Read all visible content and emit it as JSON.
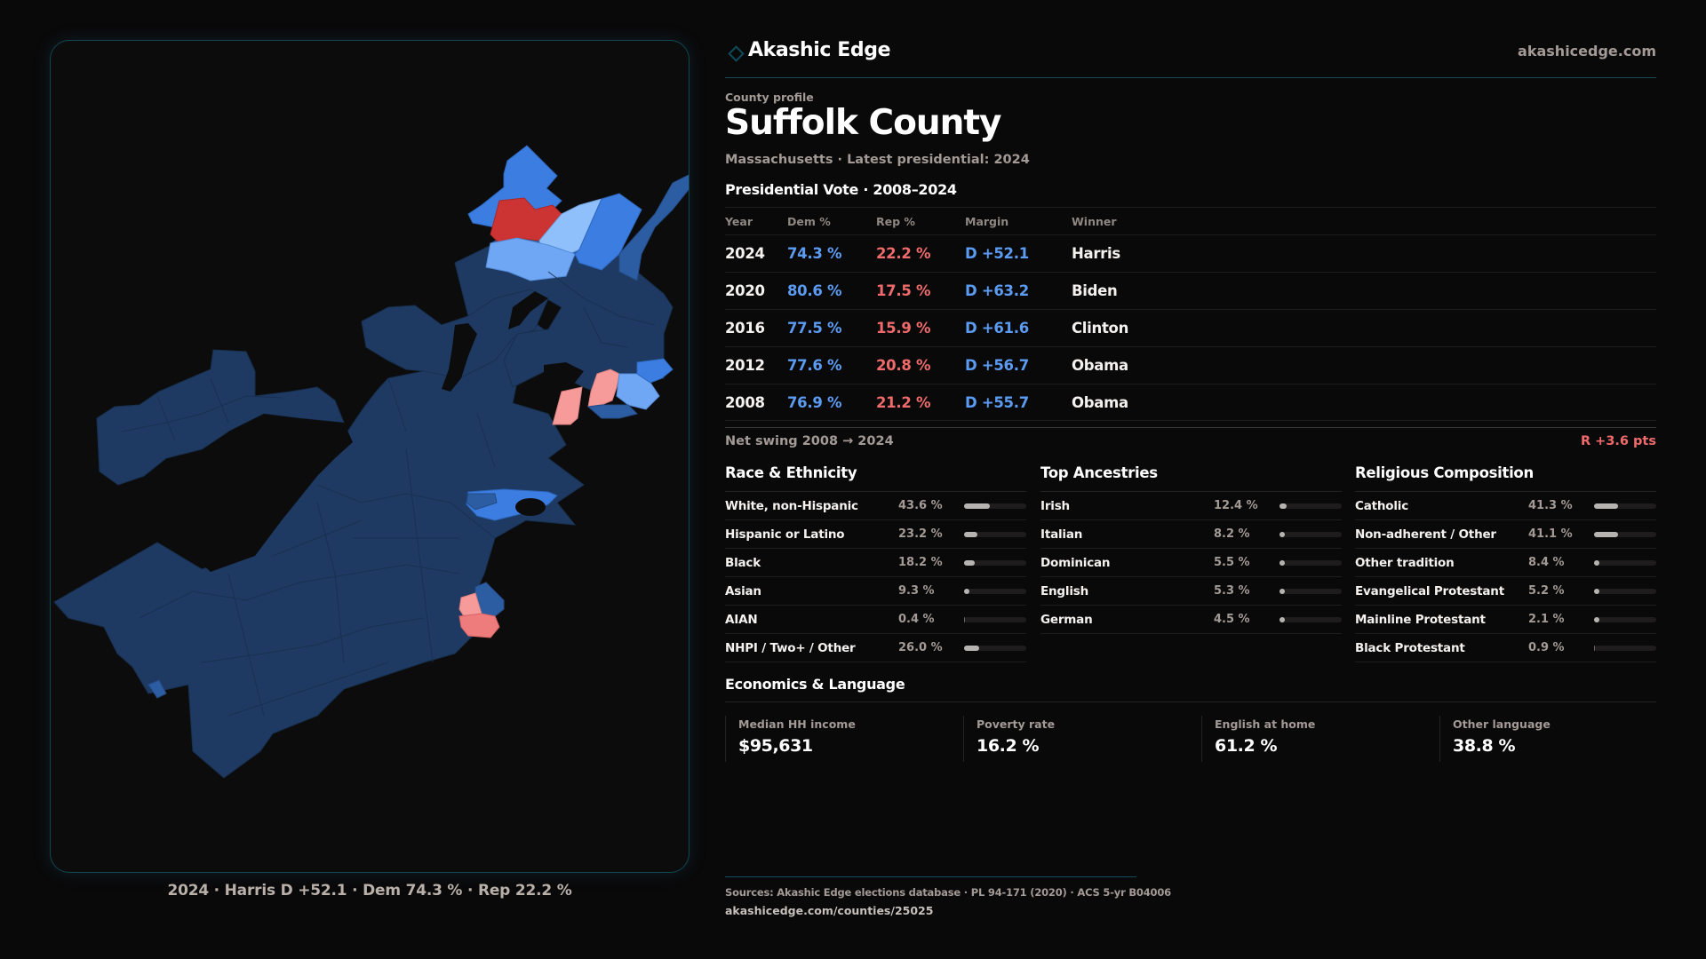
{
  "brand": {
    "name": "Akashic Edge",
    "url": "akashicedge.com",
    "icon": "diamond-outline-icon",
    "accent": "#0e4a5a"
  },
  "profile": {
    "eyebrow": "County profile",
    "title": "Suffolk County",
    "subtitle": "Massachusetts · Latest presidential: 2024"
  },
  "map": {
    "caption": "2024 · Harris D +52.1 · Dem 74.3 % · Rep 22.2 %",
    "colors": {
      "safe_dem": "#1e3a62",
      "likely_dem": "#2c5da3",
      "lean_dem": "#3b7de0",
      "tilt_dem": "#6fa7f5",
      "light_dem": "#8fc0fb",
      "lean_rep": "#f69a9a",
      "likely_rep": "#ef7c7c",
      "safe_rep": "#cc3434"
    }
  },
  "presidential": {
    "title": "Presidential Vote · 2008–2024",
    "columns": [
      "Year",
      "Dem %",
      "Rep %",
      "Margin",
      "Winner"
    ],
    "rows": [
      {
        "year": "2024",
        "dem": "74.3 %",
        "rep": "22.2 %",
        "margin": "D +52.1",
        "winner": "Harris"
      },
      {
        "year": "2020",
        "dem": "80.6 %",
        "rep": "17.5 %",
        "margin": "D +63.2",
        "winner": "Biden"
      },
      {
        "year": "2016",
        "dem": "77.5 %",
        "rep": "15.9 %",
        "margin": "D +61.6",
        "winner": "Clinton"
      },
      {
        "year": "2012",
        "dem": "77.6 %",
        "rep": "20.8 %",
        "margin": "D +56.7",
        "winner": "Obama"
      },
      {
        "year": "2008",
        "dem": "76.9 %",
        "rep": "21.2 %",
        "margin": "D +55.7",
        "winner": "Obama"
      }
    ],
    "colors": {
      "dem": "#5b9cf2",
      "rep": "#ef6b6b"
    }
  },
  "swing": {
    "label": "Net swing 2008 → 2024",
    "value": "R +3.6 pts"
  },
  "demographics": [
    {
      "title": "Race & Ethnicity",
      "items": [
        {
          "label": "White, non-Hispanic",
          "value": "43.6 %",
          "pct": 43.6
        },
        {
          "label": "Hispanic or Latino",
          "value": "23.2 %",
          "pct": 23.2
        },
        {
          "label": "Black",
          "value": "18.2 %",
          "pct": 18.2
        },
        {
          "label": "Asian",
          "value": "9.3 %",
          "pct": 9.3
        },
        {
          "label": "AIAN",
          "value": "0.4 %",
          "pct": 0.4
        },
        {
          "label": "NHPI / Two+ / Other",
          "value": "26.0 %",
          "pct": 26.0
        }
      ]
    },
    {
      "title": "Top Ancestries",
      "items": [
        {
          "label": "Irish",
          "value": "12.4 %",
          "pct": 12.4
        },
        {
          "label": "Italian",
          "value": "8.2 %",
          "pct": 8.2
        },
        {
          "label": "Dominican",
          "value": "5.5 %",
          "pct": 5.5
        },
        {
          "label": "English",
          "value": "5.3 %",
          "pct": 5.3
        },
        {
          "label": "German",
          "value": "4.5 %",
          "pct": 4.5
        }
      ]
    },
    {
      "title": "Religious Composition",
      "items": [
        {
          "label": "Catholic",
          "value": "41.3 %",
          "pct": 41.3
        },
        {
          "label": "Non-adherent / Other",
          "value": "41.1 %",
          "pct": 41.1
        },
        {
          "label": "Other tradition",
          "value": "8.4 %",
          "pct": 8.4
        },
        {
          "label": "Evangelical Protestant",
          "value": "5.2 %",
          "pct": 5.2
        },
        {
          "label": "Mainline Protestant",
          "value": "2.1 %",
          "pct": 2.1
        },
        {
          "label": "Black Protestant",
          "value": "0.9 %",
          "pct": 0.9
        }
      ]
    }
  ],
  "economics": {
    "title": "Economics & Language",
    "cards": [
      {
        "label": "Median HH income",
        "value": "$95,631"
      },
      {
        "label": "Poverty rate",
        "value": "16.2 %"
      },
      {
        "label": "English at home",
        "value": "61.2 %"
      },
      {
        "label": "Other language",
        "value": "38.8 %"
      }
    ]
  },
  "footer": {
    "sources": "Sources: Akashic Edge elections database · PL 94-171 (2020) · ACS 5-yr B04006",
    "url": "akashicedge.com/counties/25025"
  }
}
